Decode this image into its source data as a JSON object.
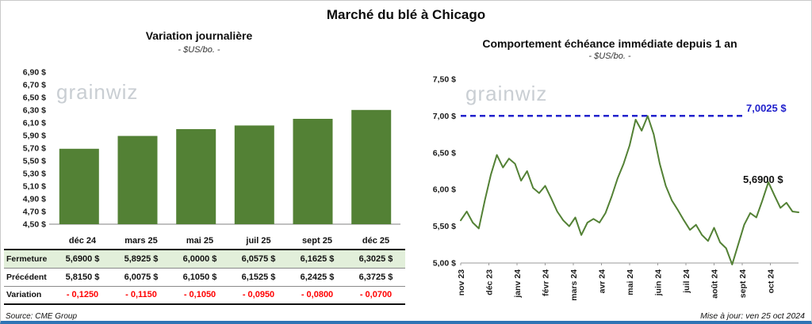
{
  "page": {
    "title": "Marché du blé à Chicago",
    "source": "Source: CME Group",
    "updated": "Mise à jour: ven 25 oct 2024",
    "watermark": "grainwiz",
    "bottom_bar_color": "#2E74B5"
  },
  "left": {
    "title": "Variation journalière",
    "subtitle": "- $US/bo. -",
    "chart_data": {
      "type": "bar",
      "categories": [
        "déc 24",
        "mars 25",
        "mai 25",
        "juil 25",
        "sept 25",
        "déc 25"
      ],
      "values": [
        5.69,
        5.8925,
        6.0,
        6.0575,
        6.1625,
        6.3025
      ],
      "title": "Variation journalière",
      "xlabel": "",
      "ylabel": "$US/bo.",
      "ylim": [
        4.5,
        6.9
      ],
      "ytick_step": 0.2,
      "ytick_labels": [
        "4,50 $",
        "4,70 $",
        "4,90 $",
        "5,10 $",
        "5,30 $",
        "5,50 $",
        "5,70 $",
        "5,90 $",
        "6,10 $",
        "6,30 $",
        "6,50 $",
        "6,70 $",
        "6,90 $"
      ],
      "grid": false,
      "bar_color": "#538135"
    },
    "table": {
      "headers": [
        "déc 24",
        "mars 25",
        "mai 25",
        "juil 25",
        "sept 25",
        "déc 25"
      ],
      "rows": [
        {
          "label": "Fermeture",
          "values": [
            "5,6900 $",
            "5,8925 $",
            "6,0000 $",
            "6,0575 $",
            "6,1625 $",
            "6,3025 $"
          ]
        },
        {
          "label": "Précédent",
          "values": [
            "5,8150 $",
            "6,0075 $",
            "6,1050 $",
            "6,1525 $",
            "6,2425 $",
            "6,3725 $"
          ]
        },
        {
          "label": "Variation",
          "values": [
            "- 0,1250",
            "- 0,1150",
            "- 0,1050",
            "- 0,0950",
            "- 0,0800",
            "- 0,0700"
          ]
        }
      ]
    }
  },
  "right": {
    "title": "Comportement échéance immédiate depuis 1 an",
    "subtitle": "- $US/bo. -",
    "chart_data": {
      "type": "line",
      "x_labels": [
        "nov 23",
        "déc 23",
        "janv 24",
        "févr 24",
        "mars 24",
        "avr 24",
        "mai 24",
        "juin 24",
        "juil 24",
        "août 24",
        "sept 24",
        "oct 24"
      ],
      "values": [
        5.58,
        5.7,
        5.55,
        5.47,
        5.85,
        6.2,
        6.47,
        6.3,
        6.42,
        6.35,
        6.12,
        6.25,
        6.02,
        5.95,
        6.05,
        5.88,
        5.7,
        5.58,
        5.5,
        5.62,
        5.38,
        5.55,
        5.6,
        5.55,
        5.68,
        5.9,
        6.15,
        6.35,
        6.6,
        6.95,
        6.8,
        7.0,
        6.75,
        6.35,
        6.05,
        5.85,
        5.72,
        5.58,
        5.45,
        5.52,
        5.38,
        5.3,
        5.48,
        5.28,
        5.2,
        4.98,
        5.25,
        5.52,
        5.68,
        5.62,
        5.85,
        6.1,
        5.92,
        5.75,
        5.82,
        5.7,
        5.69
      ],
      "title": "Comportement échéance immédiate depuis 1 an",
      "xlabel": "",
      "ylabel": "$US/bo.",
      "ylim": [
        5.0,
        7.5
      ],
      "ytick_step": 0.5,
      "ytick_labels": [
        "5,00 $",
        "5,50 $",
        "6,00 $",
        "6,50 $",
        "7,00 $",
        "7,50 $"
      ],
      "grid": false,
      "line_color": "#538135",
      "ref_line": {
        "value": 7.0025,
        "label": "7,0025 $",
        "color": "#2222CC",
        "style": "dashed"
      },
      "last_value": 5.69,
      "last_label": "5,6900 $"
    }
  }
}
